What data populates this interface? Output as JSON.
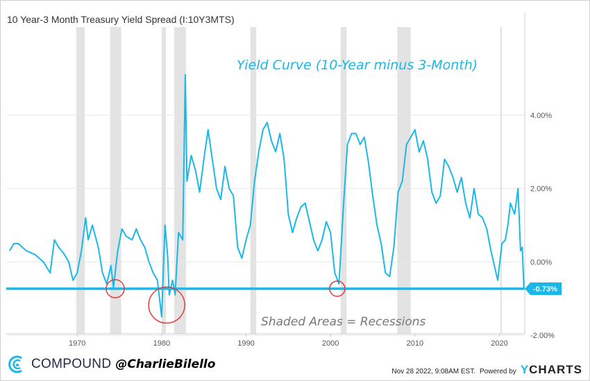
{
  "chart_data": {
    "type": "line",
    "title": "10 Year-3 Month Treasury Yield Spread (I:10Y3MTS)",
    "annotation_title": "Yield Curve (10-Year minus 3-Month)",
    "annotation_recessions": "Shaded Areas = Recessions",
    "current_value_label": "-0.73%",
    "current_value": -0.73,
    "xlim": [
      1961.6,
      2023.0
    ],
    "ylim": [
      -1.96,
      6.4
    ],
    "x_ticks": [
      1970,
      1980,
      1990,
      2000,
      2010,
      2020
    ],
    "x_tick_labels": [
      "1970",
      "1980",
      "1990",
      "2000",
      "2010",
      "2020"
    ],
    "y_ticks": [
      -2,
      0,
      2,
      4
    ],
    "y_tick_labels": [
      "-2.00%",
      "0.00%",
      "2.00%",
      "4.00%"
    ],
    "grid": true,
    "line_color": "#1ab8e8",
    "recessions": [
      [
        1969.9,
        1970.9
      ],
      [
        1973.9,
        1975.2
      ],
      [
        1980.0,
        1980.5
      ],
      [
        1981.5,
        1982.9
      ],
      [
        1990.5,
        1991.2
      ],
      [
        2001.2,
        2001.9
      ],
      [
        2007.9,
        2009.5
      ],
      [
        2020.1,
        2020.3
      ]
    ],
    "highlight_circles": [
      [
        1974.5,
        -0.73
      ],
      [
        1980.6,
        -1.1
      ],
      [
        2000.8,
        -0.73
      ]
    ],
    "series": [
      {
        "name": "10 Year-3 Month Treasury Yield Spread",
        "x": [
          1962,
          1962.5,
          1963,
          1964,
          1965,
          1966,
          1966.8,
          1967.3,
          1967.8,
          1968.5,
          1969,
          1969.5,
          1970,
          1970.5,
          1971,
          1971.3,
          1971.8,
          1972.5,
          1973,
          1973.5,
          1974,
          1974.3,
          1974.8,
          1975.3,
          1975.8,
          1976.5,
          1977,
          1977.5,
          1978,
          1978.5,
          1979,
          1979.5,
          1980,
          1980.4,
          1980.7,
          1980.9,
          1981.3,
          1981.6,
          1982,
          1982.5,
          1982.8,
          1983,
          1983.5,
          1984,
          1984.5,
          1985,
          1985.5,
          1986,
          1986.5,
          1987,
          1987.5,
          1988,
          1988.5,
          1989,
          1989.5,
          1990,
          1990.5,
          1991,
          1991.5,
          1992,
          1992.5,
          1993,
          1993.5,
          1994,
          1994.5,
          1995,
          1995.5,
          1996,
          1996.5,
          1997,
          1997.5,
          1998,
          1998.5,
          1999,
          1999.5,
          2000,
          2000.5,
          2001,
          2001.5,
          2002,
          2002.5,
          2003,
          2003.5,
          2004,
          2004.5,
          2005,
          2005.5,
          2006,
          2006.5,
          2007,
          2007.5,
          2008,
          2008.5,
          2009,
          2009.5,
          2010,
          2010.5,
          2011,
          2011.5,
          2012,
          2012.5,
          2013,
          2013.5,
          2014,
          2014.5,
          2015,
          2015.5,
          2016,
          2016.5,
          2017,
          2017.5,
          2018,
          2018.5,
          2019,
          2019.5,
          2019.8,
          2020.3,
          2020.7,
          2021,
          2021.3,
          2021.8,
          2022.2,
          2022.5,
          2022.7,
          2022.9
        ],
        "y": [
          0.3,
          0.5,
          0.5,
          0.3,
          0.2,
          0.0,
          -0.3,
          0.6,
          0.4,
          0.2,
          0.0,
          -0.5,
          -0.3,
          0.3,
          1.2,
          0.6,
          1.0,
          0.4,
          -0.3,
          -0.6,
          -0.1,
          -0.7,
          0.3,
          0.9,
          0.7,
          0.6,
          0.9,
          0.6,
          0.4,
          0.0,
          -0.3,
          -0.5,
          -1.5,
          1.0,
          0.2,
          -0.9,
          -0.5,
          -0.9,
          0.8,
          0.6,
          5.1,
          2.2,
          2.9,
          2.5,
          1.9,
          2.8,
          3.6,
          2.8,
          2.0,
          1.7,
          2.6,
          2.0,
          1.8,
          0.4,
          0.1,
          0.6,
          1.0,
          2.2,
          3.0,
          3.6,
          3.8,
          3.3,
          3.0,
          3.5,
          2.8,
          1.3,
          0.8,
          1.2,
          1.5,
          1.6,
          1.1,
          0.6,
          0.3,
          0.6,
          1.1,
          0.8,
          -0.3,
          -0.6,
          1.4,
          3.2,
          3.5,
          3.5,
          3.2,
          3.4,
          2.7,
          1.8,
          1.0,
          0.5,
          -0.3,
          -0.4,
          0.4,
          1.9,
          2.2,
          3.2,
          3.4,
          3.6,
          3.0,
          3.3,
          2.8,
          1.9,
          1.6,
          1.8,
          2.8,
          2.6,
          2.3,
          1.9,
          2.3,
          1.6,
          1.2,
          2.0,
          1.3,
          1.2,
          0.9,
          0.3,
          -0.2,
          -0.5,
          0.5,
          0.6,
          1.0,
          1.6,
          1.3,
          2.0,
          0.3,
          0.4,
          -0.73
        ]
      }
    ]
  },
  "footer": {
    "brand": "COMPOUND",
    "handle": "@CharlieBilello",
    "timestamp": "Nov 28 2022, 9:08AM EST.",
    "powered_by": "Powered by",
    "ycharts_y": "Y",
    "ycharts_rest": "CHARTS"
  }
}
